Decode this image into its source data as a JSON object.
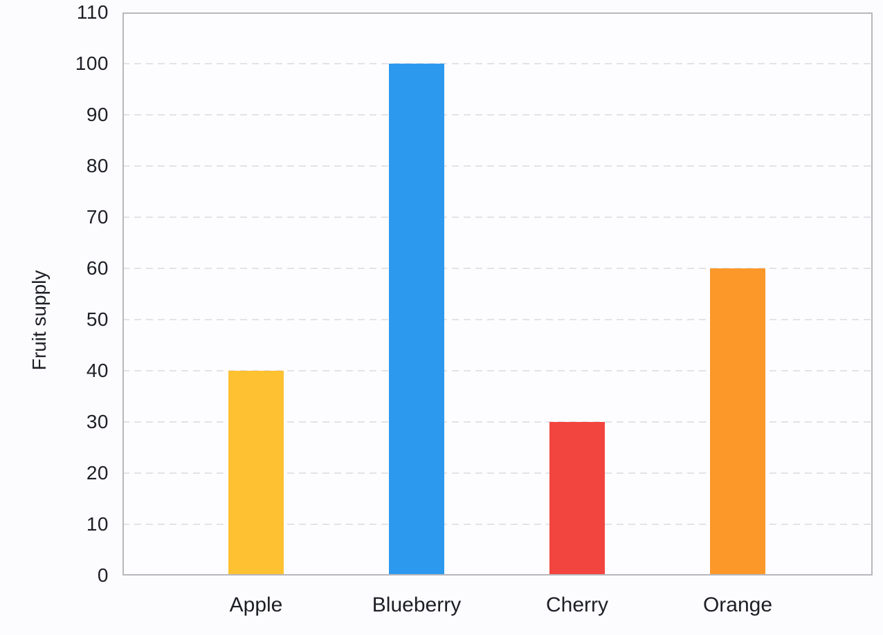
{
  "chart_data": {
    "type": "bar",
    "categories": [
      "Apple",
      "Blueberry",
      "Cherry",
      "Orange"
    ],
    "values": [
      40,
      100,
      30,
      60
    ],
    "bar_colors": [
      "#fdc132",
      "#2d99ee",
      "#f2453f",
      "#fb9829"
    ],
    "title": "",
    "xlabel": "",
    "ylabel": "Fruit supply",
    "ylim": [
      0,
      110
    ],
    "yticks": [
      0,
      10,
      20,
      30,
      40,
      50,
      60,
      70,
      80,
      90,
      100,
      110
    ],
    "grid": "horizontal-dashed",
    "legend": "none"
  },
  "style": {
    "background": "#fcfcff",
    "plot_background": "#fdfdff",
    "border_color": "#b7b7bc",
    "grid_color": "#e3e3e7",
    "text_color": "#1d1f24"
  }
}
